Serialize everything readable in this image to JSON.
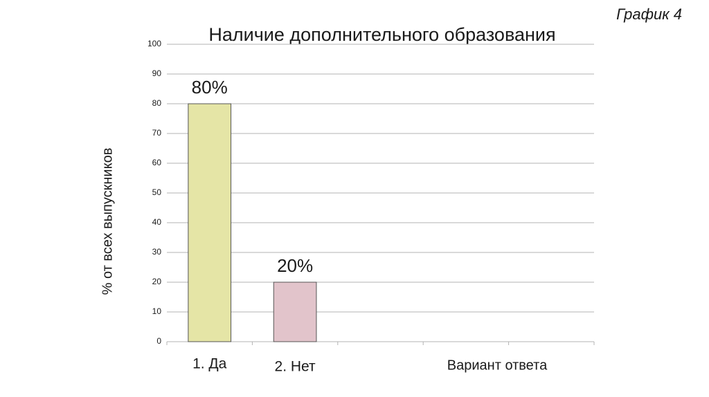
{
  "chart_data": {
    "type": "bar",
    "title": "Наличие дополнительного образования",
    "corner_label": "График 4",
    "y_label": "% от всех выпускников",
    "x_label": "Вариант ответа",
    "categories": [
      "1. Да",
      "2. Нет",
      null,
      null,
      null
    ],
    "values": [
      80,
      20,
      null,
      null,
      null
    ],
    "value_labels": [
      "80%",
      "20%",
      null,
      null,
      null
    ],
    "colors": [
      "#e5e5a6",
      "#e2c4cb",
      null,
      null,
      null
    ],
    "ylim": [
      0,
      100
    ],
    "yticks": [
      0,
      10,
      20,
      30,
      40,
      50,
      60,
      70,
      80,
      90,
      100
    ],
    "grid": true
  }
}
